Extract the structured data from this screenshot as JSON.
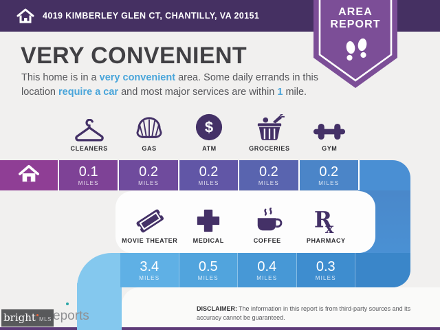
{
  "header": {
    "address": "4019 KIMBERLEY GLEN CT, CHANTILLY, VA 20151",
    "badge": {
      "line1": "AREA",
      "line2": "REPORT"
    }
  },
  "summary": {
    "title": "VERY CONVENIENT",
    "segments": [
      {
        "text": "This home is in a ",
        "highlight": false
      },
      {
        "text": "very convenient",
        "highlight": true
      },
      {
        "text": " area. Some daily errands in this location ",
        "highlight": false
      },
      {
        "text": "require a car",
        "highlight": true
      },
      {
        "text": " and most major services are within ",
        "highlight": false
      },
      {
        "text": "1",
        "highlight": true
      },
      {
        "text": " mile.",
        "highlight": false
      }
    ]
  },
  "rows": [
    {
      "home_color": "#8f3e95",
      "tail_color": "#4a8fd3",
      "items": [
        {
          "label": "CLEANERS",
          "icon": "hanger-icon",
          "distance": "0.1",
          "unit": "MILES",
          "color": "#7e4296"
        },
        {
          "label": "GAS",
          "icon": "shell-icon",
          "distance": "0.2",
          "unit": "MILES",
          "color": "#6f4b9d"
        },
        {
          "label": "ATM",
          "icon": "dollar-circle-icon",
          "distance": "0.2",
          "unit": "MILES",
          "color": "#6156a6"
        },
        {
          "label": "GROCERIES",
          "icon": "basket-icon",
          "distance": "0.2",
          "unit": "MILES",
          "color": "#5964af"
        },
        {
          "label": "GYM",
          "icon": "dumbbell-icon",
          "distance": "0.2",
          "unit": "MILES",
          "color": "#4b85c8"
        }
      ]
    },
    {
      "curl_color": "#84c8ee",
      "tail_color": "#3a86c9",
      "items": [
        {
          "label": "MOVIE THEATER",
          "icon": "ticket-icon",
          "distance": "3.4",
          "unit": "MILES",
          "color": "#5fb0e5"
        },
        {
          "label": "MEDICAL",
          "icon": "medical-cross-icon",
          "distance": "0.5",
          "unit": "MILES",
          "color": "#51a4dd"
        },
        {
          "label": "COFFEE",
          "icon": "coffee-cup-icon",
          "distance": "0.4",
          "unit": "MILES",
          "color": "#4798d6"
        },
        {
          "label": "PHARMACY",
          "icon": "rx-icon",
          "distance": "0.3",
          "unit": "MILES",
          "color": "#3e8dcf"
        }
      ]
    }
  ],
  "footer": {
    "disclaimer_label": "DISCLAIMER:",
    "disclaimer_text": "The information in this report is from third-party sources and its accuracy cannot be guaranteed.",
    "brand": "bright",
    "brand_suffix": "MLS",
    "partial_logo_text": "eports"
  },
  "colors": {
    "header_purple": "#453062",
    "badge_purple": "#7c4e97",
    "accent_blue": "#49a5da",
    "icon_purple": "#443167",
    "band_right_top": "#4a86c8",
    "band_right_bottom": "#4a91d4",
    "band_left": "#84c8ee",
    "footer_strip": "#5d3a78",
    "background": "#f1f0ef"
  }
}
